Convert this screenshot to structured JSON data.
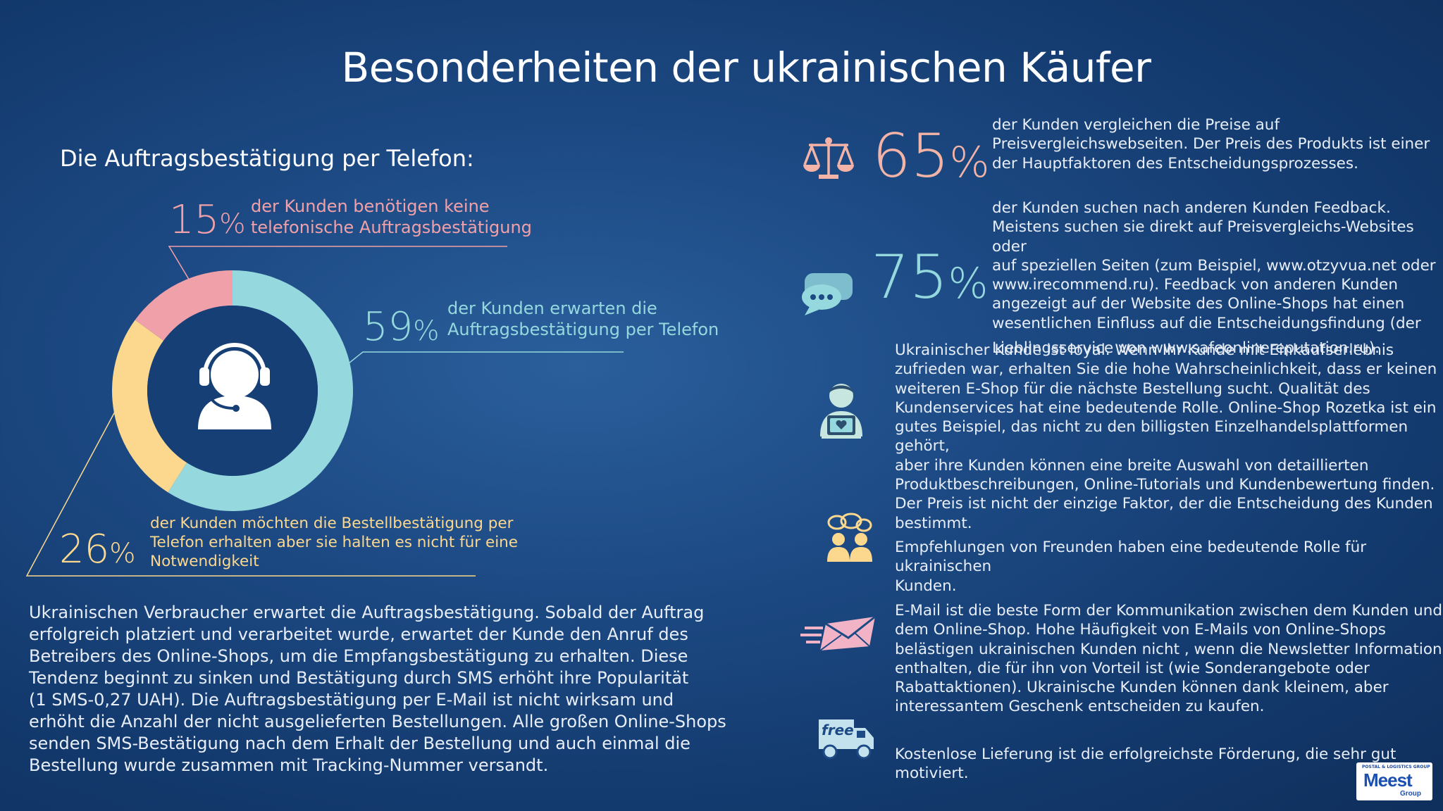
{
  "title": "Besonderheiten der ukrainischen Käufer",
  "subtitle": "Die Auftragsbestätigung per Telefon:",
  "colors": {
    "pink": "#f0a0a8",
    "blue": "#95d8dd",
    "yellow": "#fcd88e",
    "white": "#ffffff"
  },
  "chart_data": {
    "type": "pie",
    "categories": [
      "der Kunden benötigen keine telefonische Auftragsbestätigung",
      "der Kunden erwarten die Auftragsbestätigung per Telefon",
      "der Kunden möchten die Bestellbestätigung per Telefon erhalten aber sie halten es nicht für eine Notwendigkeit"
    ],
    "values": [
      15,
      59,
      26
    ],
    "unit": "%",
    "colors": [
      "#f0a0a8",
      "#95d8dd",
      "#fcd88e"
    ]
  },
  "donut": {
    "center_icon": "headset-user-icon",
    "labels": [
      {
        "value": "15",
        "sign": "%",
        "line1": "der Kunden benötigen keine",
        "line2": "telefonische Auftragsbestätigung"
      },
      {
        "value": "59",
        "sign": "%",
        "line1": "der Kunden erwarten die",
        "line2": "Auftragsbestätigung per Telefon"
      },
      {
        "value": "26",
        "sign": "%",
        "line1": "der Kunden möchten die Bestellbestätigung per",
        "line2": "Telefon erhalten aber sie halten es nicht für eine",
        "line3": "Notwendigkeit"
      }
    ]
  },
  "left_paragraph": [
    "Ukrainischen Verbraucher erwartet die Auftragsbestätigung. Sobald der Auftrag",
    "erfolgreich platziert und verarbeitet wurde, erwartet der Kunde den Anruf des",
    "Betreibers des Online-Shops, um die Empfangsbestätigung zu erhalten. Diese",
    "Tendenz beginnt zu sinken und Bestätigung durch SMS erhöht ihre Popularität",
    "(1 SMS-0,27 UAH). Die Auftragsbestätigung per E-Mail ist nicht wirksam und",
    "erhöht die Anzahl der nicht ausgelieferten Bestellungen. Alle großen Online-Shops",
    "senden SMS-Bestätigung nach dem Erhalt der Bestellung und auch einmal die",
    "Bestellung wurde zusammen mit Tracking-Nummer versandt."
  ],
  "facts": [
    {
      "icon": "scales-icon",
      "value": "65",
      "sign": "%",
      "lines": [
        "der Kunden vergleichen die Preise auf",
        "Preisvergleichswebseiten. Der Preis des Produkts ist einer",
        "der Hauptfaktoren des Entscheidungsprozesses."
      ]
    },
    {
      "icon": "chat-bubbles-icon",
      "value": "75",
      "sign": "%",
      "lines": [
        "der Kunden suchen nach anderen Kunden Feedback.",
        "Meistens suchen sie direkt auf Preisvergleichs-Websites oder",
        "auf speziellen Seiten (zum Beispiel, www.otzyvua.net oder",
        "www.irecommend.ru). Feedback von anderen Kunden",
        "angezeigt auf der Website des Online-Shops hat einen",
        "wesentlichen Einfluss auf die Entscheidungsfindung (der"
      ],
      "tail": "Lieblingsservice von www.safeonlinereputation.ru)."
    },
    {
      "icon": "loyal-customer-icon",
      "lines": [
        "Ukrainischer Kunde ist loyal. Wenn Ihr Kunde mit Einkaufserlebnis",
        "zufrieden war, erhalten Sie die hohe Wahrscheinlichkeit, dass er keinen",
        "weiteren E-Shop für die nächste Bestellung sucht. Qualität des",
        "Kundenservices hat eine bedeutende Rolle. Online-Shop Rozetka ist ein",
        "gutes Beispiel, das nicht zu den billigsten Einzelhandelsplattformen gehört,",
        "aber ihre Kunden können eine breite Auswahl von detaillierten",
        "Produktbeschreibungen, Online-Tutorials und Kundenbewertung finden.",
        "Der Preis ist nicht der einzige Faktor, der die Entscheidung des Kunden",
        "bestimmt."
      ]
    },
    {
      "icon": "friends-talking-icon",
      "lines": [
        "Empfehlungen von Freunden haben eine bedeutende Rolle für ukrainischen",
        "Kunden."
      ]
    },
    {
      "icon": "email-icon",
      "lines": [
        "E-Mail ist die beste Form der Kommunikation zwischen dem Kunden und",
        "dem Online-Shop. Hohe Häufigkeit von E-Mails von Online-Shops",
        "belästigen ukrainischen Kunden nicht , wenn die Newsletter Information",
        "enthalten, die für ihn von Vorteil ist (wie Sonderangebote oder",
        "Rabattaktionen). Ukrainische Kunden können dank kleinem, aber",
        "interessantem Geschenk entscheiden zu kaufen."
      ]
    },
    {
      "icon": "free-delivery-truck-icon",
      "icon_text": "free",
      "lines": [
        "Kostenlose Lieferung ist die erfolgreichste Förderung, die sehr gut",
        "motiviert."
      ]
    }
  ],
  "logo": {
    "top": "POSTAL & LOGISTICS GROUP",
    "name": "Meest",
    "group": "Group"
  }
}
